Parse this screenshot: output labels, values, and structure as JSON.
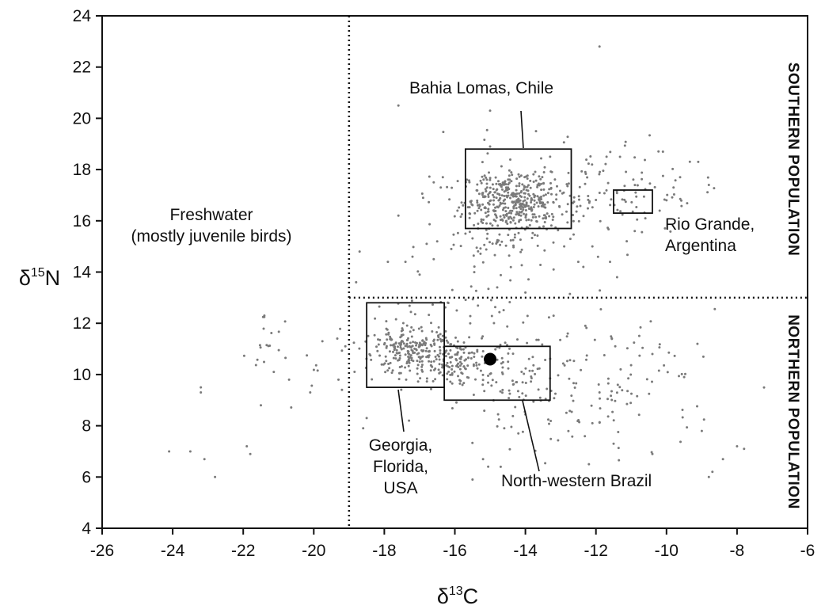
{
  "chart_data": {
    "type": "scatter",
    "xlabel": {
      "base": "δ",
      "sup": "13",
      "rest": "C"
    },
    "ylabel": {
      "base": "δ",
      "sup": "15",
      "rest": "N"
    },
    "xlim": [
      -26,
      -6
    ],
    "ylim": [
      4,
      24
    ],
    "xticks": [
      -26,
      -24,
      -22,
      -20,
      -18,
      -16,
      -14,
      -12,
      -10,
      -8,
      -6
    ],
    "yticks": [
      4,
      6,
      8,
      10,
      12,
      14,
      16,
      18,
      20,
      22,
      24
    ],
    "grid": false,
    "divider_lines": {
      "vertical_x": -19,
      "horizontal_y": 13
    },
    "regions": [
      {
        "name": "Bahia Lomas, Chile",
        "x": [
          -15.7,
          -12.7
        ],
        "y": [
          15.7,
          18.8
        ]
      },
      {
        "name": "Rio Grande, Argentina",
        "x": [
          -11.5,
          -10.4
        ],
        "y": [
          16.3,
          17.2
        ]
      },
      {
        "name": "Georgia, Florida, USA",
        "x": [
          -18.5,
          -16.3
        ],
        "y": [
          9.5,
          12.8
        ]
      },
      {
        "name": "North-western Brazil",
        "x": [
          -16.3,
          -13.3
        ],
        "y": [
          9.0,
          11.1
        ]
      }
    ],
    "highlight_point": {
      "x": -15.0,
      "y": 10.6
    },
    "clusters": [
      {
        "cx": -14.3,
        "cy": 16.8,
        "sx": 0.75,
        "sy": 0.55,
        "n": 380
      },
      {
        "cx": -14.8,
        "cy": 15.6,
        "sx": 0.9,
        "sy": 1.2,
        "n": 90
      },
      {
        "cx": -13.6,
        "cy": 16.6,
        "sx": 1.6,
        "sy": 1.3,
        "n": 70
      },
      {
        "cx": -11.0,
        "cy": 17.0,
        "sx": 0.8,
        "sy": 0.8,
        "n": 55
      },
      {
        "cx": -9.8,
        "cy": 17.6,
        "sx": 0.9,
        "sy": 0.8,
        "n": 14
      },
      {
        "cx": -17.3,
        "cy": 10.9,
        "sx": 0.65,
        "sy": 0.45,
        "n": 230
      },
      {
        "cx": -16.0,
        "cy": 10.6,
        "sx": 0.6,
        "sy": 0.5,
        "n": 120
      },
      {
        "cx": -14.3,
        "cy": 10.1,
        "sx": 1.1,
        "sy": 0.8,
        "n": 90
      },
      {
        "cx": -11.6,
        "cy": 9.6,
        "sx": 1.6,
        "sy": 1.4,
        "n": 110
      },
      {
        "cx": -16.5,
        "cy": 12.7,
        "sx": 1.0,
        "sy": 0.35,
        "n": 25
      },
      {
        "cx": -13.5,
        "cy": 8.0,
        "sx": 1.4,
        "sy": 0.9,
        "n": 25
      },
      {
        "cx": -21.3,
        "cy": 11.0,
        "sx": 0.3,
        "sy": 0.6,
        "n": 18
      },
      {
        "cx": -19.8,
        "cy": 10.3,
        "sx": 0.4,
        "sy": 0.8,
        "n": 12
      }
    ],
    "sparse_points": [
      [
        -24.1,
        7.0
      ],
      [
        -23.5,
        7.0
      ],
      [
        -23.2,
        9.3
      ],
      [
        -23.2,
        9.5
      ],
      [
        -23.1,
        6.7
      ],
      [
        -22.8,
        6.0
      ],
      [
        -21.9,
        7.2
      ],
      [
        -21.8,
        6.9
      ],
      [
        -21.5,
        8.8
      ],
      [
        -21.4,
        12.3
      ],
      [
        -20.7,
        9.8
      ],
      [
        -20.1,
        9.3
      ],
      [
        -19.3,
        9.8
      ],
      [
        -19.2,
        9.4
      ],
      [
        -17.6,
        20.5
      ],
      [
        -17.4,
        14.4
      ],
      [
        -17.0,
        13.9
      ],
      [
        -16.6,
        14.5
      ],
      [
        -16.5,
        15.2
      ],
      [
        -15.7,
        15.5
      ],
      [
        -15.0,
        20.3
      ],
      [
        -15.0,
        18.9
      ],
      [
        -13.7,
        19.5
      ],
      [
        -13.3,
        18.5
      ],
      [
        -11.9,
        22.8
      ],
      [
        -11.6,
        14.4
      ],
      [
        -11.4,
        13.8
      ],
      [
        -12.1,
        15.0
      ],
      [
        -10.1,
        18.7
      ],
      [
        -9.8,
        17.3
      ],
      [
        -9.1,
        18.3
      ],
      [
        -8.8,
        17.4
      ],
      [
        -10.9,
        15.6
      ],
      [
        -12.2,
        6.5
      ],
      [
        -11.5,
        7.3
      ],
      [
        -10.4,
        6.9
      ],
      [
        -9.5,
        9.9
      ],
      [
        -9.0,
        7.8
      ],
      [
        -8.8,
        6.0
      ],
      [
        -8.4,
        6.7
      ],
      [
        -8.0,
        7.2
      ],
      [
        -7.8,
        7.1
      ],
      [
        -15.5,
        5.9
      ],
      [
        -15.2,
        6.7
      ],
      [
        -14.7,
        6.4
      ],
      [
        -14.2,
        7.7
      ],
      [
        -14.6,
        7.9
      ],
      [
        -17.3,
        8.2
      ],
      [
        -18.6,
        7.9
      ],
      [
        -18.5,
        8.3
      ],
      [
        -12.8,
        11.6
      ],
      [
        -12.3,
        11.9
      ],
      [
        -11.3,
        10.2
      ],
      [
        -10.4,
        10.8
      ],
      [
        -18.8,
        13.6
      ],
      [
        -18.7,
        14.8
      ],
      [
        -17.9,
        14.4
      ],
      [
        -17.2,
        14.6
      ],
      [
        -16.8,
        15.1
      ],
      [
        -16.1,
        14.9
      ],
      [
        -13.2,
        14.1
      ],
      [
        -12.9,
        15.0
      ],
      [
        -12.5,
        14.4
      ],
      [
        -17.6,
        16.2
      ],
      [
        -16.9,
        16.9
      ],
      [
        -16.4,
        17.3
      ],
      [
        -16.6,
        17.5
      ],
      [
        -12.3,
        17.9
      ],
      [
        -11.7,
        18.5
      ],
      [
        -10.6,
        16.1
      ],
      [
        -10.0,
        16.8
      ],
      [
        -14.0,
        13.2
      ],
      [
        -14.8,
        13.4
      ]
    ],
    "annotations": [
      {
        "lines": [
          "Bahia Lomas, Chile"
        ],
        "anchor": "middle"
      },
      {
        "lines": [
          "Freshwater",
          "(mostly juvenile birds)"
        ],
        "anchor": "middle"
      },
      {
        "lines": [
          "Rio Grande,",
          "Argentina"
        ],
        "anchor": "start"
      },
      {
        "lines": [
          "Georgia,",
          "Florida,",
          "USA"
        ],
        "anchor": "middle"
      },
      {
        "lines": [
          "North-western Brazil"
        ],
        "anchor": "start"
      },
      {
        "lines": [
          "SOUTHERN POPULATION"
        ],
        "anchor": "middle",
        "rotated": true
      },
      {
        "lines": [
          "NORTHERN POPULATION"
        ],
        "anchor": "middle",
        "rotated": true
      }
    ]
  }
}
